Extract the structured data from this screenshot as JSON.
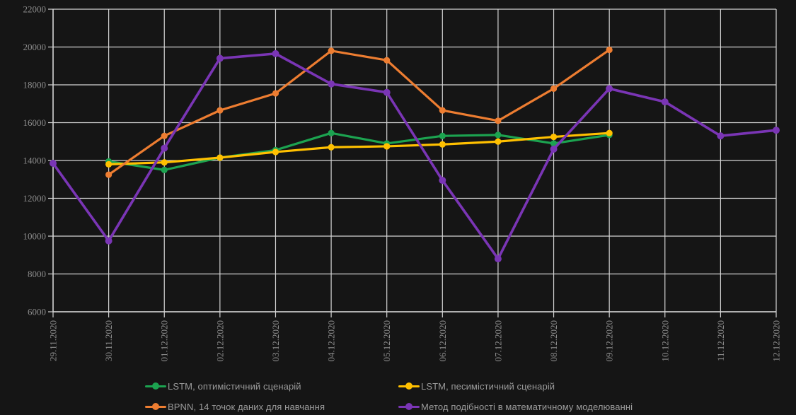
{
  "chart_data": {
    "type": "line",
    "title": "",
    "xlabel": "",
    "ylabel": "",
    "categories": [
      "29.11.2020",
      "30.11.2020",
      "01.12.2020",
      "02.12.2020",
      "03.12.2020",
      "04.12.2020",
      "05.12.2020",
      "06.12.2020",
      "07.12.2020",
      "08.12.2020",
      "09.12.2020",
      "10.12.2020",
      "11.12.2020",
      "12.12.2020"
    ],
    "y_ticks": [
      6000,
      8000,
      10000,
      12000,
      14000,
      16000,
      18000,
      20000,
      22000
    ],
    "ylim": [
      6000,
      22000
    ],
    "grid": true,
    "legend_position": "bottom",
    "series": [
      {
        "name": "LSTM, оптимістичний сценарій",
        "color": "#1CA350",
        "values": [
          null,
          13950,
          13500,
          14150,
          14550,
          15450,
          14900,
          15300,
          15350,
          14900,
          15350,
          null,
          null,
          null
        ]
      },
      {
        "name": "LSTM, песимістичний сценарій",
        "color": "#FFC000",
        "values": [
          null,
          13800,
          13900,
          14150,
          14450,
          14700,
          14750,
          14850,
          15000,
          15250,
          15450,
          null,
          null,
          null
        ]
      },
      {
        "name": "BPNN, 14 точок даних для навчання",
        "color": "#ED7D31",
        "values": [
          null,
          13250,
          15300,
          16650,
          17550,
          19800,
          19300,
          16650,
          16100,
          17800,
          19850,
          null,
          null,
          null
        ]
      },
      {
        "name": "Метод подібності в математичному моделюванні",
        "color": "#7A35B5",
        "values": [
          13850,
          9750,
          14650,
          19400,
          19650,
          18050,
          17600,
          12950,
          8800,
          14600,
          17800,
          17100,
          15300,
          15600
        ]
      }
    ]
  },
  "colors": {
    "background": "#151515",
    "gridline": "#d4d4d4",
    "axis_tick_label": "#8d8d8d",
    "legend_label": "#9b9b9b"
  }
}
